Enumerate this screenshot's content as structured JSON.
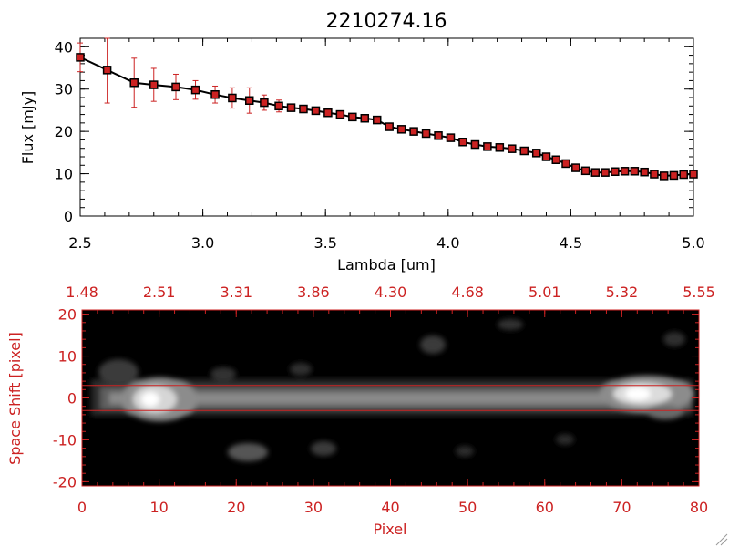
{
  "figure_title": "2210274.16",
  "colors": {
    "spectrum": "#000000",
    "error_bar": "#cc2222",
    "red_axis": "#cc2222",
    "image_bg": "#000000"
  },
  "chart_data": [
    {
      "type": "line",
      "title": "2210274.16",
      "xlabel": "Lambda [um]",
      "ylabel": "Flux [mJy]",
      "xlim": [
        2.5,
        5.0
      ],
      "ylim": [
        0,
        42
      ],
      "xticks": [
        "2.5",
        "3.0",
        "3.5",
        "4.0",
        "4.5",
        "5.0"
      ],
      "yticks": [
        "0",
        "10",
        "20",
        "30",
        "40"
      ],
      "series": [
        {
          "x": [
            2.5,
            2.61,
            2.72,
            2.8,
            2.89,
            2.97,
            3.05,
            3.12,
            3.19,
            3.25,
            3.31,
            3.36,
            3.41,
            3.46,
            3.51,
            3.56,
            3.61,
            3.66,
            3.71,
            3.76,
            3.81,
            3.86,
            3.91,
            3.96,
            4.01,
            4.06,
            4.11,
            4.16,
            4.21,
            4.26,
            4.31,
            4.36,
            4.4,
            4.44,
            4.48,
            4.52,
            4.56,
            4.6,
            4.64,
            4.68,
            4.72,
            4.76,
            4.8,
            4.84,
            4.88,
            4.92,
            4.96,
            5.0
          ],
          "y": [
            37.5,
            34.5,
            31.5,
            31.0,
            30.5,
            29.8,
            28.7,
            27.9,
            27.3,
            26.8,
            26.0,
            25.6,
            25.3,
            24.9,
            24.4,
            24.0,
            23.4,
            23.1,
            22.7,
            21.1,
            20.5,
            20.0,
            19.5,
            19.0,
            18.5,
            17.5,
            16.9,
            16.4,
            16.2,
            15.9,
            15.4,
            14.9,
            14.0,
            13.3,
            12.4,
            11.4,
            10.7,
            10.3,
            10.3,
            10.5,
            10.6,
            10.6,
            10.4,
            9.9,
            9.5,
            9.6,
            9.8,
            9.9
          ],
          "err": [
            3.4,
            7.8,
            5.8,
            3.9,
            3.0,
            2.2,
            2.0,
            2.4,
            3.0,
            1.8,
            1.4,
            0.7,
            0.6,
            0.5,
            0.4,
            0.4,
            0.4,
            0.4,
            0.4,
            0.4,
            0.4,
            0.4,
            0.4,
            0.4,
            0.4,
            0.4,
            0.4,
            0.4,
            0.4,
            0.4,
            0.4,
            0.4,
            0.4,
            0.4,
            0.4,
            0.4,
            0.4,
            0.4,
            0.4,
            0.4,
            0.4,
            0.4,
            0.4,
            0.4,
            0.4,
            0.4,
            0.4,
            0.4
          ]
        }
      ]
    },
    {
      "type": "heatmap",
      "xlabel": "Pixel",
      "ylabel": "Space Shift [pixel]",
      "xlim": [
        0,
        80
      ],
      "ylim": [
        -21,
        21
      ],
      "xticks": [
        "0",
        "10",
        "20",
        "30",
        "40",
        "50",
        "60",
        "70",
        "80"
      ],
      "yticks": [
        "-20",
        "-10",
        "0",
        "10",
        "20"
      ],
      "top_ticks": [
        "1.48",
        "2.51",
        "3.31",
        "3.86",
        "4.30",
        "4.68",
        "5.01",
        "5.32",
        "5.55"
      ],
      "extraction_window": [
        -3,
        3
      ]
    }
  ]
}
